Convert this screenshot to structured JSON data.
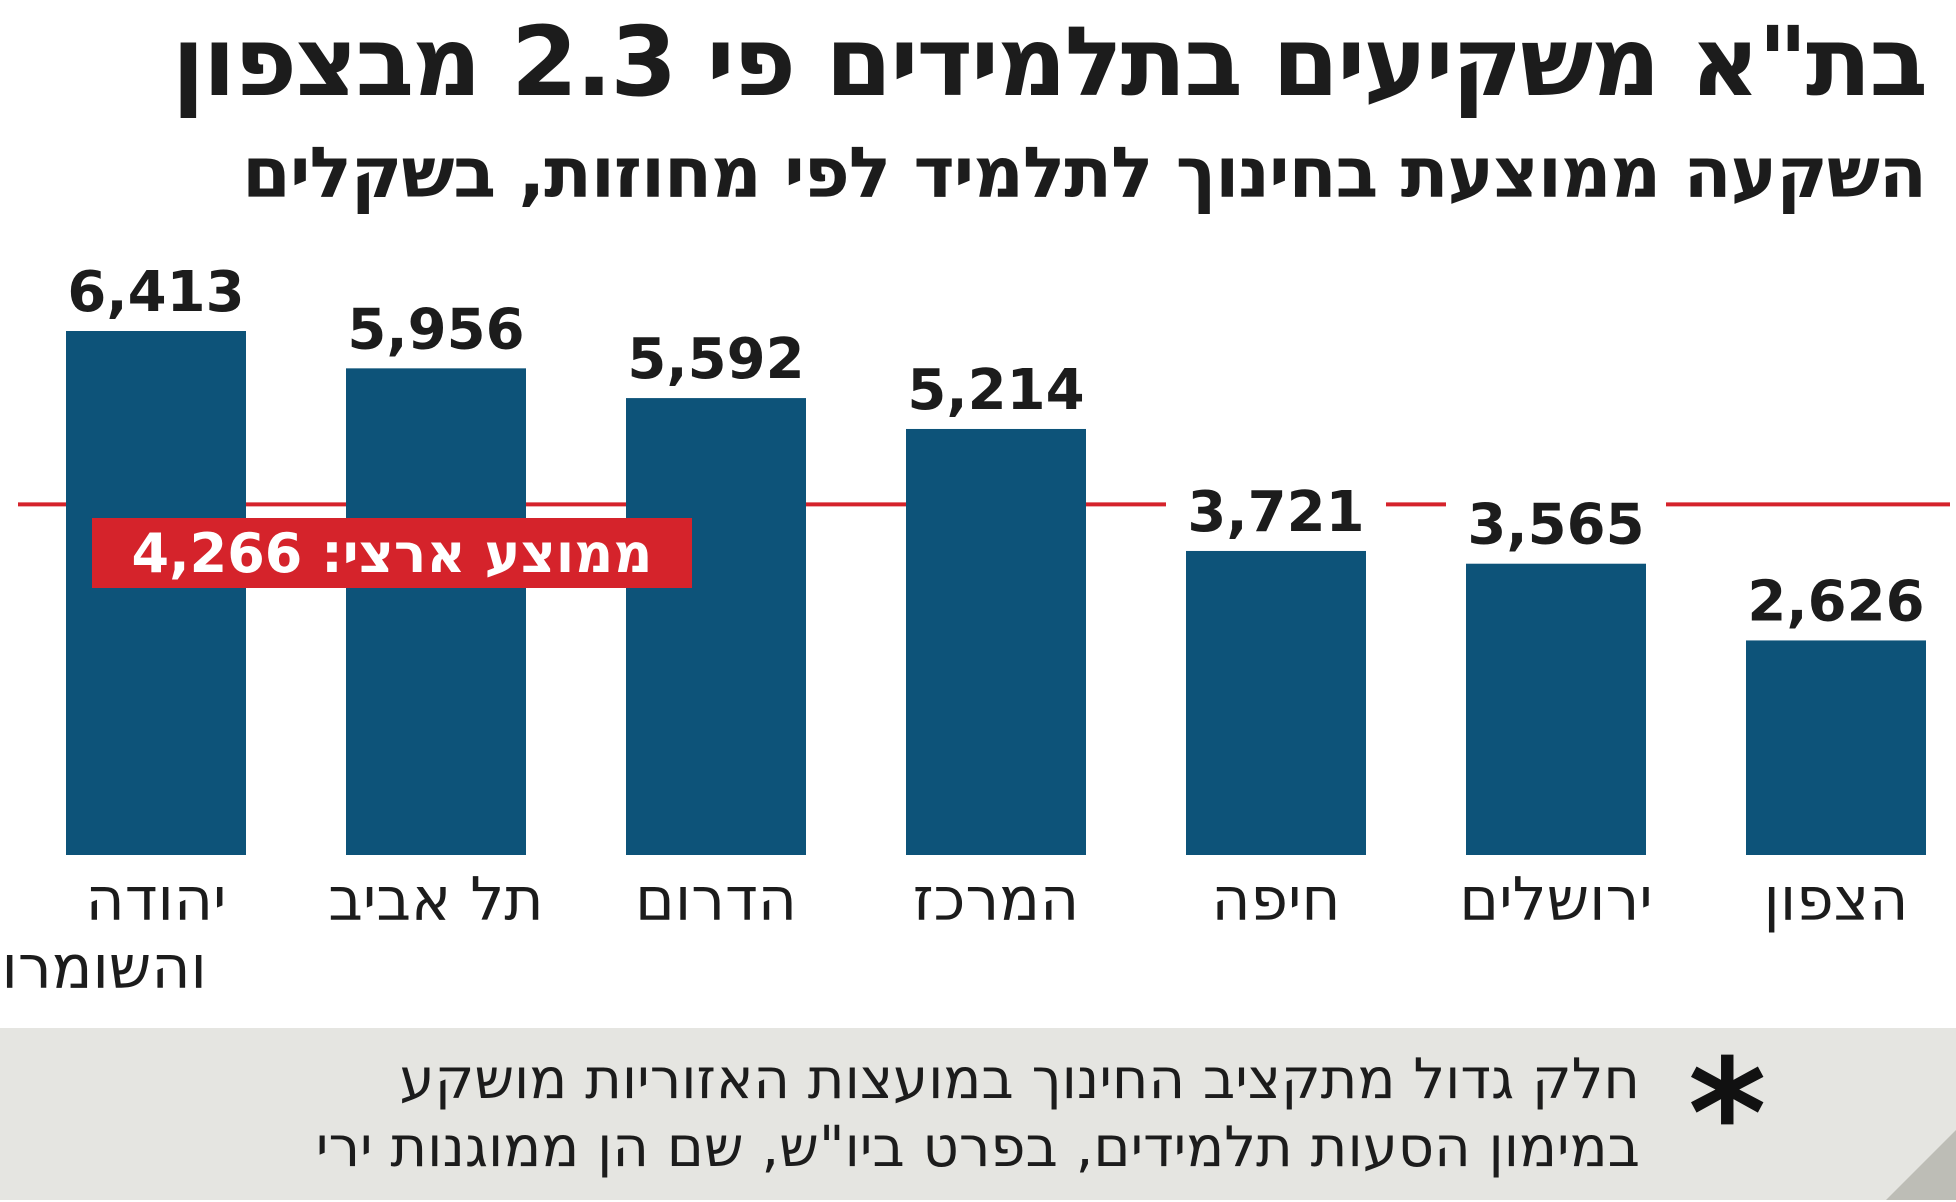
{
  "title": "בת\"א משקיעים בתלמידים פי 2.3 מבצפון",
  "subtitle": "השקעה ממוצעת בחינוך לתלמיד לפי מחוזות, בשקלים",
  "colors": {
    "bar": "#0d5379",
    "average_line": "#d5232b",
    "average_label_bg": "#d5232b",
    "text": "#1c1c1c"
  },
  "chart_data": {
    "type": "bar",
    "title": "בת\"א משקיעים בתלמידים פי 2.3 מבצפון",
    "subtitle": "השקעה ממוצעת בחינוך לתלמיד לפי מחוזות, בשקלים",
    "categories": [
      [
        "יהודה",
        "והשומרון"
      ],
      [
        "תל אביב"
      ],
      [
        "הדרום"
      ],
      [
        "המרכז"
      ],
      [
        "חיפה"
      ],
      [
        "ירושלים"
      ],
      [
        "הצפון"
      ]
    ],
    "values": [
      6413,
      5956,
      5592,
      5214,
      3721,
      3565,
      2626
    ],
    "value_labels": [
      "6,413",
      "5,956",
      "5,592",
      "5,214",
      "3,721",
      "3,565",
      "2,626"
    ],
    "ylim": [
      0,
      6500
    ],
    "reference_line": {
      "value": 4266,
      "label": "ממוצע ארצי: 4,266"
    },
    "xlabel": "",
    "ylabel": "",
    "grid": false,
    "legend": "none"
  },
  "footnote": {
    "mark": "*",
    "lines": [
      "חלק גדול מתקציב החינוך במועצות האזוריות מושקע",
      "במימון הסעות תלמידים, בפרט ביו\"ש, שם הן ממוגנות ירי"
    ]
  }
}
